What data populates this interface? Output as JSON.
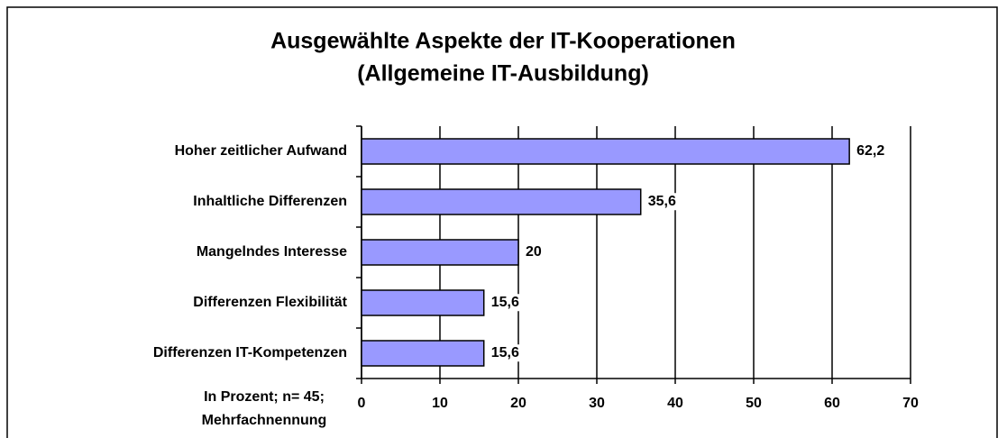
{
  "chart_data": {
    "type": "barh",
    "title": [
      "Ausgewählte Aspekte der IT-Kooperationen",
      "(Allgemeine IT-Ausbildung)"
    ],
    "categories": [
      "Hoher zeitlicher Aufwand",
      "Inhaltliche Differenzen",
      "Mangelndes Interesse",
      "Differenzen Flexibilität",
      "Differenzen IT-Kompetenzen"
    ],
    "values": [
      62.2,
      35.6,
      20,
      15.6,
      15.6
    ],
    "value_labels": [
      "62,2",
      "35,6",
      "20",
      "15,6",
      "15,6"
    ],
    "color": "#9999ff",
    "xlim": [
      0,
      70
    ],
    "xticks": [
      0,
      10,
      20,
      30,
      40,
      50,
      60,
      70
    ],
    "grid": true,
    "x_label": [
      "In Prozent; n= 45;",
      "Mehrfachnennung"
    ]
  }
}
